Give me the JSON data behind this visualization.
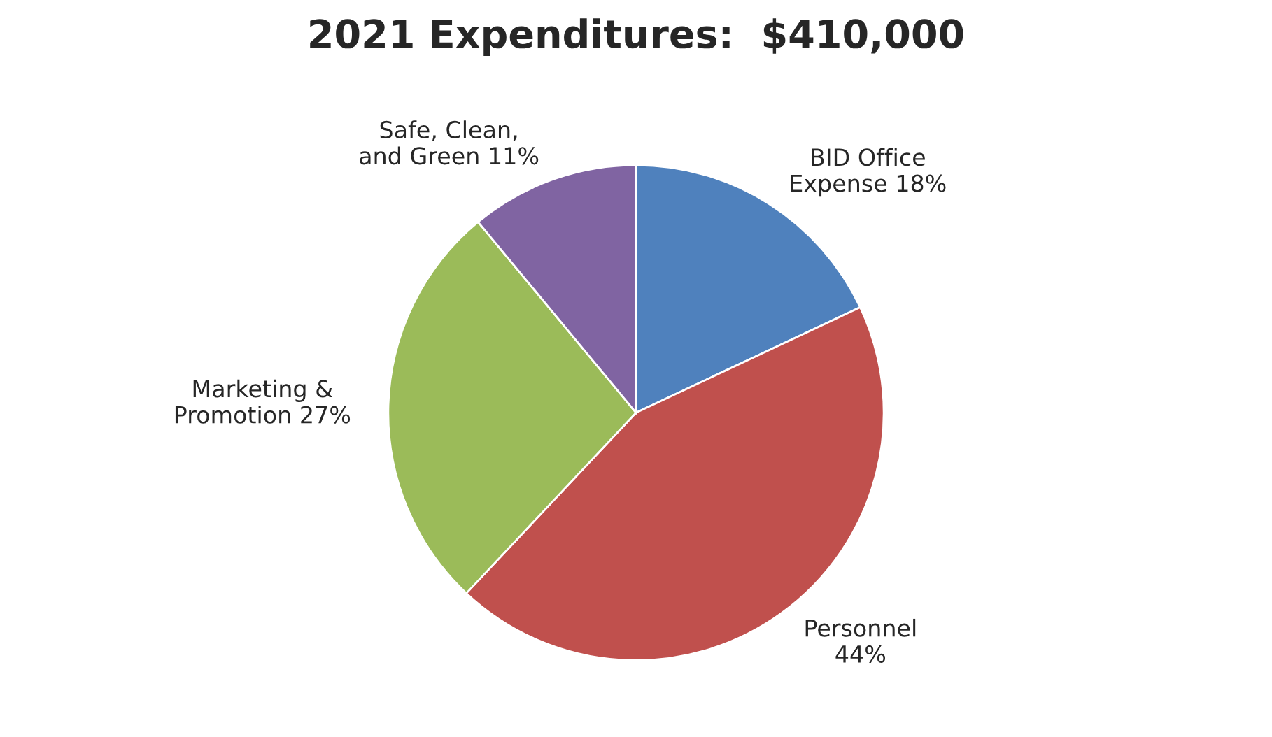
{
  "chart_data": {
    "type": "pie",
    "title": "2021 Expenditures:  $410,000",
    "categories": [
      "BID Office Expense",
      "Personnel",
      "Marketing & Promotion",
      "Safe, Clean, and Green"
    ],
    "values": [
      18,
      44,
      27,
      11
    ],
    "value_labels": [
      "18%",
      "44%",
      "27%",
      "11%"
    ],
    "colors": [
      "#4f81bd",
      "#c0504d",
      "#9bbb59",
      "#8064a2"
    ]
  }
}
